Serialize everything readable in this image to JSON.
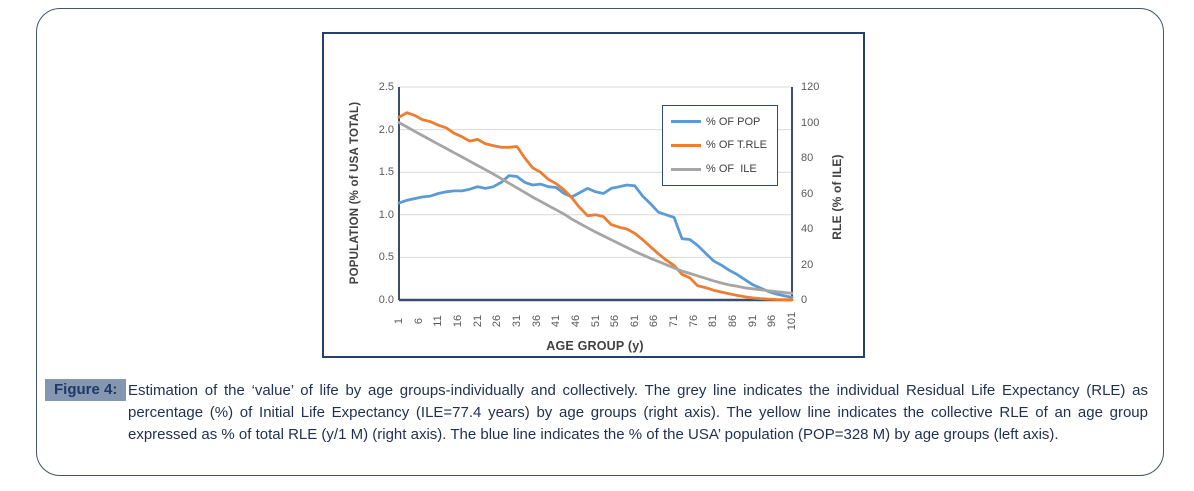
{
  "figure": {
    "caption_label": "Figure 4:",
    "caption_text": "Estimation of the ‘value’ of life by age groups-individually and collectively. The grey line indicates the individual Residual Life Expectancy (RLE) as percentage (%) of Initial Life Expectancy (ILE=77.4 years) by age groups (right axis). The yellow line indicates the collective RLE of an age group expressed as % of total RLE (y/1 M) (right axis). The blue line indicates the % of the USA’ population (POP=328 M) by age groups (left axis).",
    "colors": {
      "caption_text": "#1F3050",
      "badge_background": "#8496B0",
      "panel_border": "#44546A",
      "chart_border": "#24406B",
      "gridline": "#D9D9D9",
      "axis_line": "#3B4E6E",
      "tick_label": "#595959",
      "axis_title": "#404040"
    }
  },
  "chart_data": {
    "type": "line",
    "title": "",
    "grid": true,
    "legend_position": "top-right-inside",
    "x_axis": {
      "title": "AGE GROUP (y)",
      "range": [
        1,
        101
      ],
      "ticks": [
        "1",
        "6",
        "11",
        "16",
        "21",
        "26",
        "31",
        "36",
        "41",
        "46",
        "51",
        "56",
        "61",
        "66",
        "71",
        "76",
        "81",
        "86",
        "91",
        "96",
        "101"
      ]
    },
    "left_axis": {
      "title": "POPULATION (% of USA TOTAL)",
      "range": [
        0,
        2.5
      ],
      "ticks": [
        "0.0",
        "0.5",
        "1.0",
        "1.5",
        "2.0",
        "2.5"
      ]
    },
    "right_axis": {
      "title": "RLE (% of  ILE)",
      "range": [
        0,
        120
      ],
      "ticks": [
        "0",
        "20",
        "40",
        "60",
        "80",
        "100",
        "120"
      ]
    },
    "x": [
      1,
      3,
      5,
      7,
      9,
      11,
      13,
      15,
      17,
      19,
      21,
      23,
      25,
      27,
      29,
      31,
      33,
      35,
      37,
      39,
      41,
      43,
      45,
      47,
      49,
      51,
      53,
      55,
      57,
      59,
      61,
      63,
      65,
      67,
      69,
      71,
      73,
      75,
      77,
      79,
      81,
      83,
      85,
      87,
      89,
      91,
      93,
      95,
      97,
      99,
      101
    ],
    "series": [
      {
        "name": "% OF POP",
        "axis": "left",
        "color": "#5B9BD5",
        "values": [
          1.14,
          1.17,
          1.19,
          1.21,
          1.22,
          1.25,
          1.27,
          1.28,
          1.28,
          1.3,
          1.33,
          1.31,
          1.33,
          1.38,
          1.46,
          1.45,
          1.38,
          1.35,
          1.36,
          1.33,
          1.32,
          1.25,
          1.21,
          1.26,
          1.31,
          1.27,
          1.25,
          1.31,
          1.33,
          1.35,
          1.34,
          1.22,
          1.13,
          1.03,
          1.0,
          0.97,
          0.72,
          0.71,
          0.64,
          0.55,
          0.46,
          0.41,
          0.35,
          0.3,
          0.24,
          0.18,
          0.14,
          0.1,
          0.07,
          0.05,
          0.03
        ]
      },
      {
        "name": "% OF T.RLE",
        "axis": "right",
        "color": "#ED7D31",
        "values": [
          103,
          105.5,
          104,
          101.5,
          100.5,
          98.5,
          97,
          94,
          92,
          89.5,
          90.5,
          88,
          87,
          86,
          86,
          86.5,
          80,
          74.5,
          72,
          68,
          65.5,
          62,
          57.5,
          52,
          47.5,
          48,
          47,
          42.5,
          41,
          40,
          37.5,
          34,
          30,
          26,
          22.5,
          19.5,
          14.5,
          12.5,
          8,
          7,
          5.5,
          4.5,
          3.5,
          2.6,
          1.8,
          1.2,
          0.8,
          0.5,
          0.3,
          0.2,
          0.1
        ]
      },
      {
        "name": "% OF  ILE",
        "axis": "right",
        "color": "#A5A5A5",
        "values": [
          100,
          97.5,
          95,
          92.6,
          90.2,
          87.8,
          85.4,
          83,
          80.6,
          78.2,
          75.8,
          73.4,
          71,
          68.4,
          65.8,
          63.2,
          60.6,
          58,
          55.6,
          53.2,
          50.8,
          48.4,
          45.5,
          43.1,
          40.7,
          38.3,
          36.1,
          34,
          31.8,
          29.6,
          27.4,
          25.4,
          23.5,
          21.7,
          19.9,
          18.1,
          16.3,
          15,
          13.6,
          12.2,
          10.8,
          9.6,
          8.5,
          7.7,
          6.9,
          6.3,
          5.8,
          5.2,
          4.7,
          4.2,
          3.8
        ]
      }
    ]
  }
}
